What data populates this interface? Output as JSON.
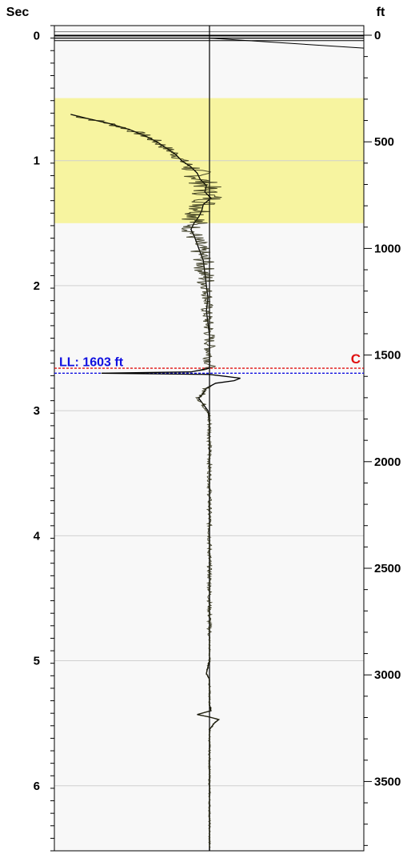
{
  "chart_data": {
    "type": "line",
    "left_axis": {
      "title": "Sec",
      "range": [
        -0.08,
        6.52
      ],
      "major_ticks": [
        0,
        1,
        2,
        3,
        4,
        5,
        6
      ],
      "minor_step": 0.1
    },
    "right_axis": {
      "title": "ft",
      "range": [
        -45,
        3825
      ],
      "major_ticks": [
        0,
        500,
        1000,
        1500,
        2000,
        2500,
        3000,
        3500
      ],
      "minor_step": 100
    },
    "grid": true,
    "highlight_band": {
      "from_sec": 0.5,
      "to_sec": 1.5,
      "color": "#f7f4a0"
    },
    "markers": [
      {
        "name": "C",
        "label": "C",
        "sec": 2.66,
        "color": "#e01010"
      },
      {
        "name": "LL",
        "label": "LL: 1603 ft",
        "sec": 2.7,
        "color": "#1010e0"
      }
    ],
    "series": [
      {
        "points": [
          [
            0.63,
            -0.9
          ],
          [
            0.66,
            -0.8
          ],
          [
            0.7,
            -0.66
          ],
          [
            0.75,
            -0.52
          ],
          [
            0.8,
            -0.42
          ],
          [
            0.85,
            -0.34
          ],
          [
            0.9,
            -0.28
          ],
          [
            0.95,
            -0.22
          ],
          [
            1.0,
            -0.18
          ],
          [
            1.05,
            -0.12
          ],
          [
            1.1,
            -0.08
          ],
          [
            1.15,
            -0.06
          ],
          [
            1.2,
            -0.02
          ],
          [
            1.25,
            -0.03
          ],
          [
            1.3,
            0.01
          ],
          [
            1.35,
            -0.04
          ],
          [
            1.4,
            -0.05
          ],
          [
            1.45,
            -0.07
          ],
          [
            1.5,
            -0.1
          ],
          [
            1.55,
            -0.12
          ],
          [
            1.6,
            -0.1
          ],
          [
            1.7,
            -0.07
          ],
          [
            1.8,
            -0.04
          ],
          [
            1.9,
            -0.03
          ],
          [
            2.0,
            -0.02
          ],
          [
            2.1,
            -0.01
          ],
          [
            2.2,
            -0.02
          ],
          [
            2.3,
            -0.01
          ],
          [
            2.4,
            0.0
          ],
          [
            2.5,
            0.0
          ],
          [
            2.6,
            0.0
          ],
          [
            2.66,
            0.0
          ],
          [
            2.69,
            -0.12
          ],
          [
            2.7,
            -0.7
          ],
          [
            2.71,
            0.0
          ],
          [
            2.74,
            0.2
          ],
          [
            2.76,
            0.16
          ],
          [
            2.78,
            0.04
          ],
          [
            2.82,
            -0.02
          ],
          [
            2.86,
            -0.04
          ],
          [
            2.9,
            -0.07
          ],
          [
            2.95,
            -0.04
          ],
          [
            3.0,
            -0.01
          ],
          [
            3.1,
            0.0
          ],
          [
            3.5,
            0.0
          ],
          [
            4.0,
            0.0
          ],
          [
            4.5,
            0.0
          ],
          [
            5.0,
            0.0
          ],
          [
            5.1,
            -0.02
          ],
          [
            5.15,
            0.0
          ],
          [
            5.35,
            0.0
          ],
          [
            5.4,
            0.01
          ],
          [
            5.43,
            -0.08
          ],
          [
            5.45,
            0.0
          ],
          [
            5.47,
            0.06
          ],
          [
            5.5,
            0.03
          ],
          [
            5.55,
            0.0
          ],
          [
            6.0,
            0.0
          ],
          [
            6.52,
            0.0
          ]
        ],
        "color": "#000000"
      }
    ]
  }
}
